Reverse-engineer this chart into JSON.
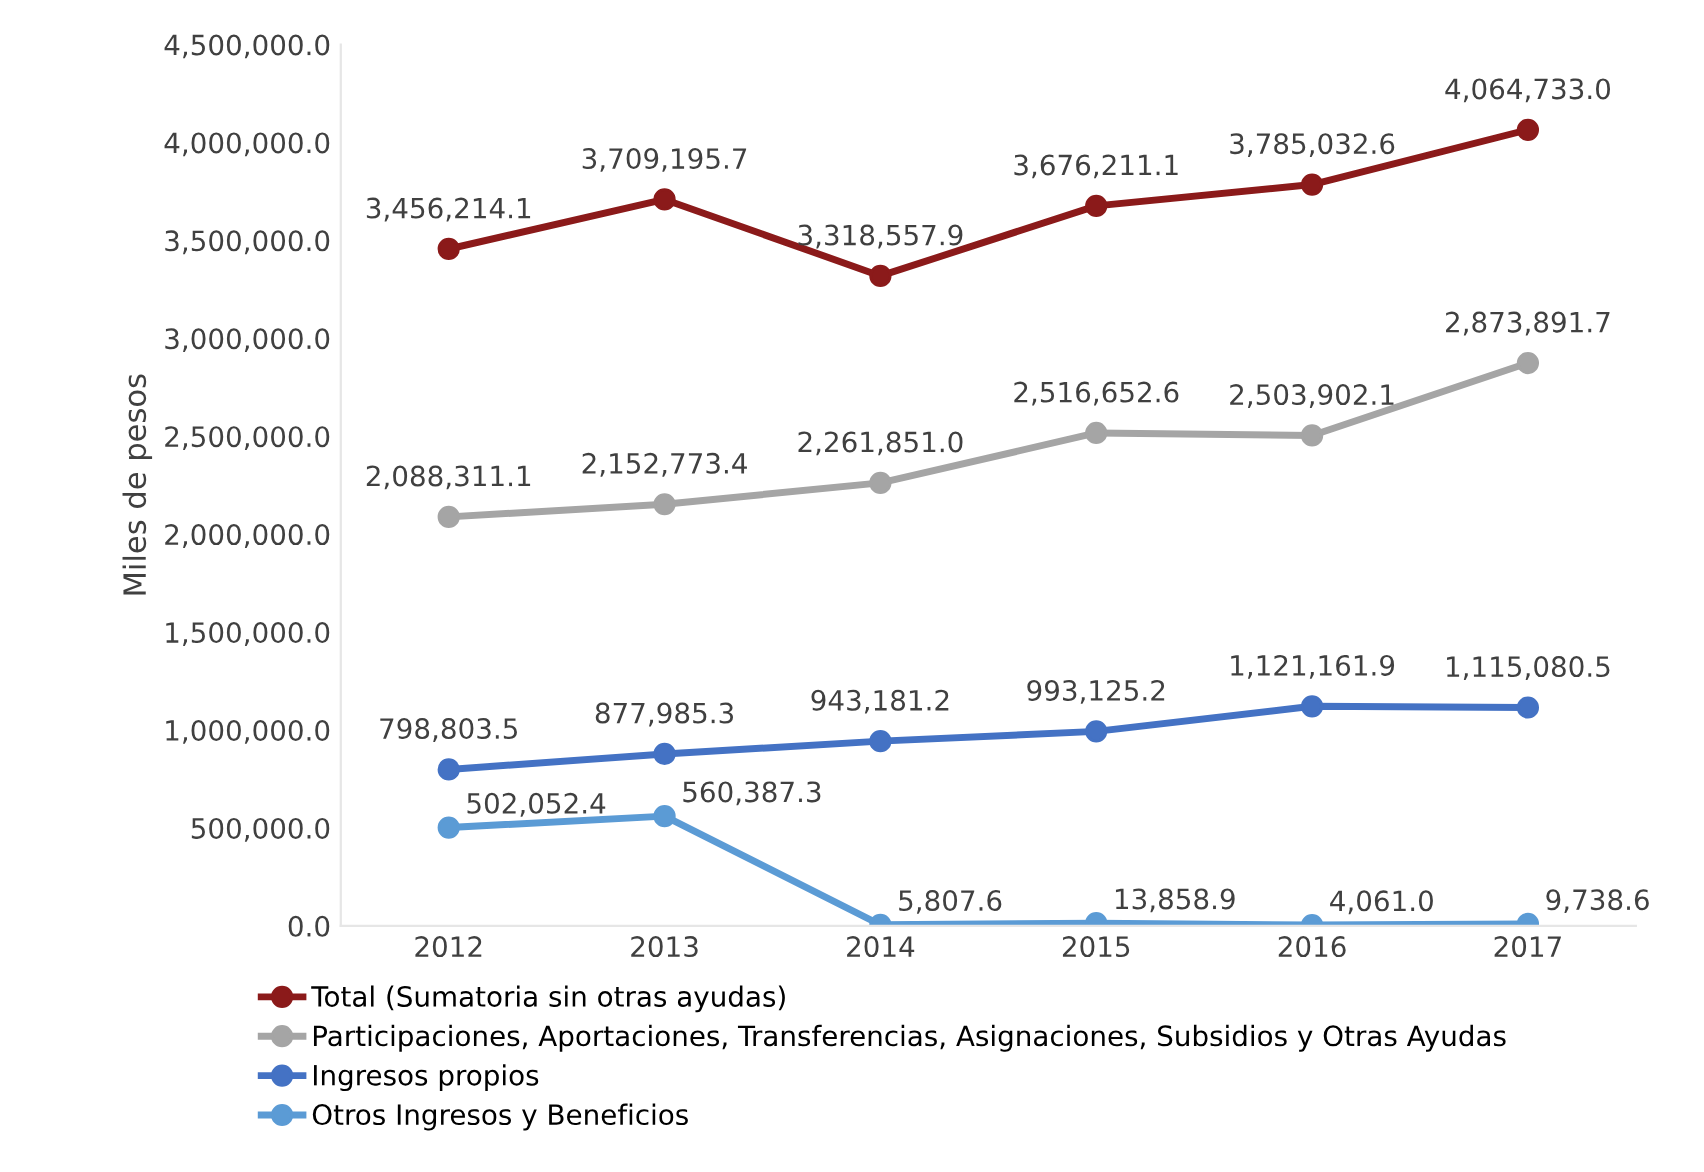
{
  "chart_data": {
    "type": "line",
    "ylabel": "Miles de pesos",
    "categories": [
      "2012",
      "2013",
      "2014",
      "2015",
      "2016",
      "2017"
    ],
    "series": [
      {
        "name": "Total (Sumatoria sin otras ayudas)",
        "color": "#8b1a1a",
        "values": [
          3456214.1,
          3709195.7,
          3318557.9,
          3676211.1,
          3785032.6,
          4064733.0
        ],
        "value_labels": [
          "3,456,214.1",
          "3,709,195.7",
          "3,318,557.9",
          "3,676,211.1",
          "3,785,032.6",
          "4,064,733.0"
        ]
      },
      {
        "name": "Participaciones, Aportaciones, Transferencias, Asignaciones, Subsidios y Otras Ayudas",
        "color": "#a5a5a5",
        "values": [
          2088311.1,
          2152773.4,
          2261851.0,
          2516652.6,
          2503902.1,
          2873891.7
        ],
        "value_labels": [
          "2,088,311.1",
          "2,152,773.4",
          "2,261,851.0",
          "2,516,652.6",
          "2,503,902.1",
          "2,873,891.7"
        ]
      },
      {
        "name": "Ingresos propios",
        "color": "#4472c4",
        "values": [
          798803.5,
          877985.3,
          943181.2,
          993125.2,
          1121161.9,
          1115080.5
        ],
        "value_labels": [
          "798,803.5",
          "877,985.3",
          "943,181.2",
          "993,125.2",
          "1,121,161.9",
          "1,115,080.5"
        ]
      },
      {
        "name": "Otros Ingresos y Beneficios",
        "color": "#5b9bd5",
        "values": [
          502052.4,
          560387.3,
          5807.6,
          13858.9,
          4061.0,
          9738.6
        ],
        "value_labels": [
          "502,052.4",
          "560,387.3",
          "5,807.6",
          "13,858.9",
          "4,061.0",
          "9,738.6"
        ]
      }
    ],
    "ylim": [
      0,
      4500000
    ],
    "yticks": [
      {
        "value": 0,
        "label": "0.0"
      },
      {
        "value": 500000,
        "label": "500,000.0"
      },
      {
        "value": 1000000,
        "label": "1,000,000.0"
      },
      {
        "value": 1500000,
        "label": "1,500,000.0"
      },
      {
        "value": 2000000,
        "label": "2,000,000.0"
      },
      {
        "value": 2500000,
        "label": "2,500,000.0"
      },
      {
        "value": 3000000,
        "label": "3,000,000.0"
      },
      {
        "value": 3500000,
        "label": "3,500,000.0"
      },
      {
        "value": 4000000,
        "label": "4,000,000.0"
      },
      {
        "value": 4500000,
        "label": "4,500,000.0"
      }
    ],
    "grid": false,
    "legend": "bottom left",
    "marker": "circle",
    "line_style": "solid"
  }
}
